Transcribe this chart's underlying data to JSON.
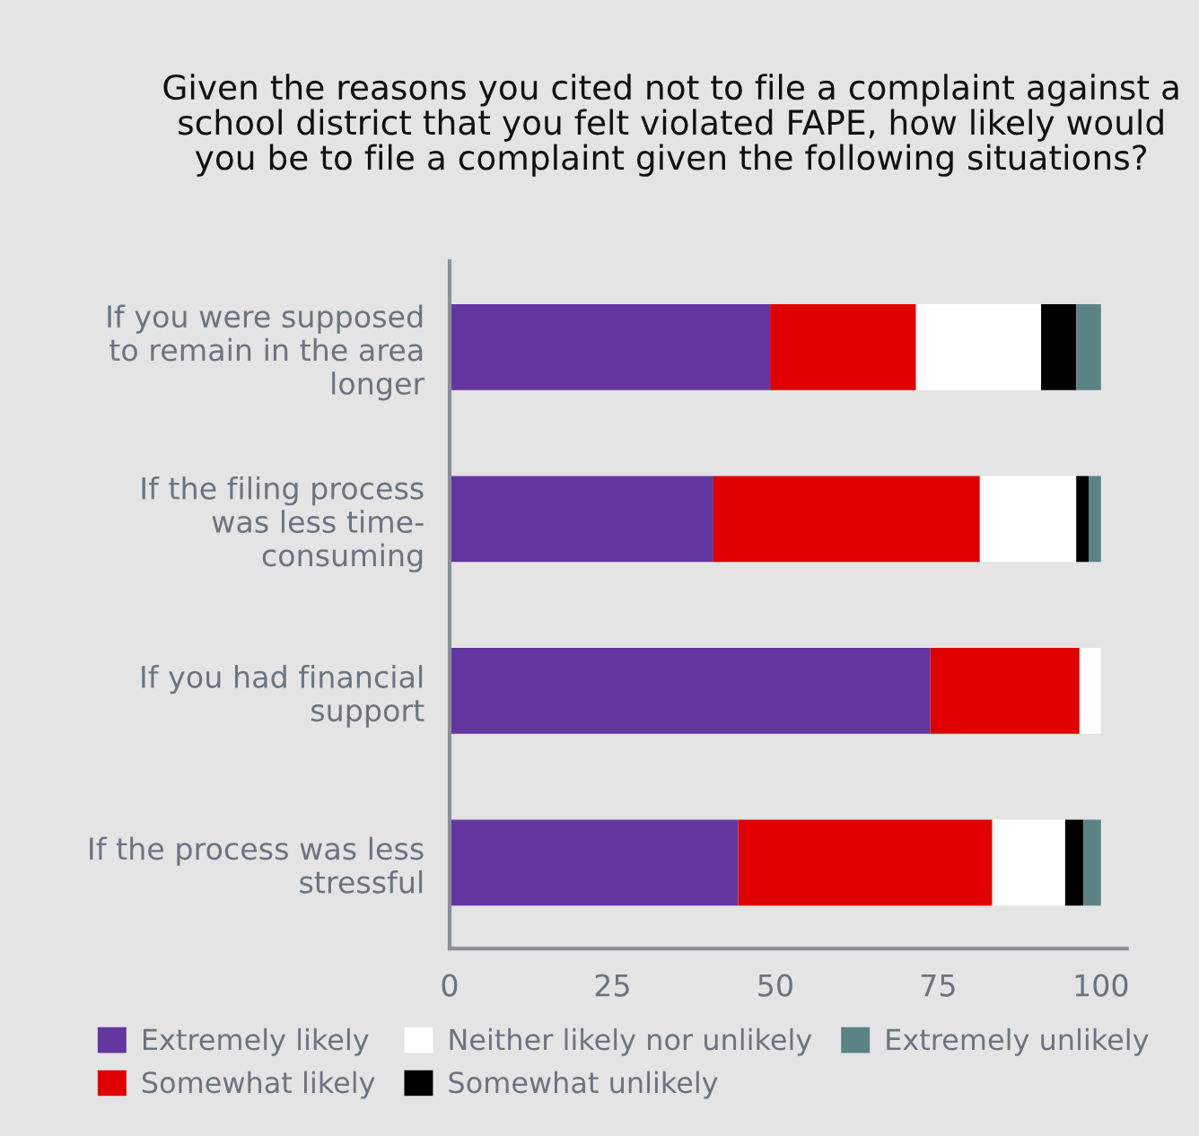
{
  "chart_data": {
    "type": "bar",
    "orientation": "horizontal",
    "stacked": true,
    "title": "Given the reasons you cited not to file a complaint against a\nschool district that you felt violated FAPE, how likely would\nyou be to file a complaint given the following situations?",
    "categories": [
      "If you were supposed\nto remain in the area\nlonger",
      "If the filing process\nwas less time-\nconsuming",
      "If you had financial\nsupport",
      "If the process was less\nstressful"
    ],
    "series": [
      {
        "name": "Extremely likely",
        "color": "#6437a0",
        "values": [
          49.2,
          40.5,
          73.8,
          44.3
        ]
      },
      {
        "name": "Somewhat likely",
        "color": "#e00000",
        "values": [
          22.4,
          40.9,
          22.9,
          39.0
        ]
      },
      {
        "name": "Neither likely nor unlikely",
        "color": "#ffffff",
        "values": [
          19.2,
          14.8,
          3.3,
          11.2
        ]
      },
      {
        "name": "Somewhat unlikely",
        "color": "#000000",
        "values": [
          5.4,
          1.9,
          0,
          2.8
        ]
      },
      {
        "name": "Extremely unlikely",
        "color": "#5b8385",
        "values": [
          3.8,
          1.9,
          0,
          2.7
        ]
      }
    ],
    "xlim": [
      0,
      104
    ],
    "xticks": [
      0,
      25,
      50,
      75,
      100
    ],
    "grid": false,
    "legend": "bottom"
  }
}
